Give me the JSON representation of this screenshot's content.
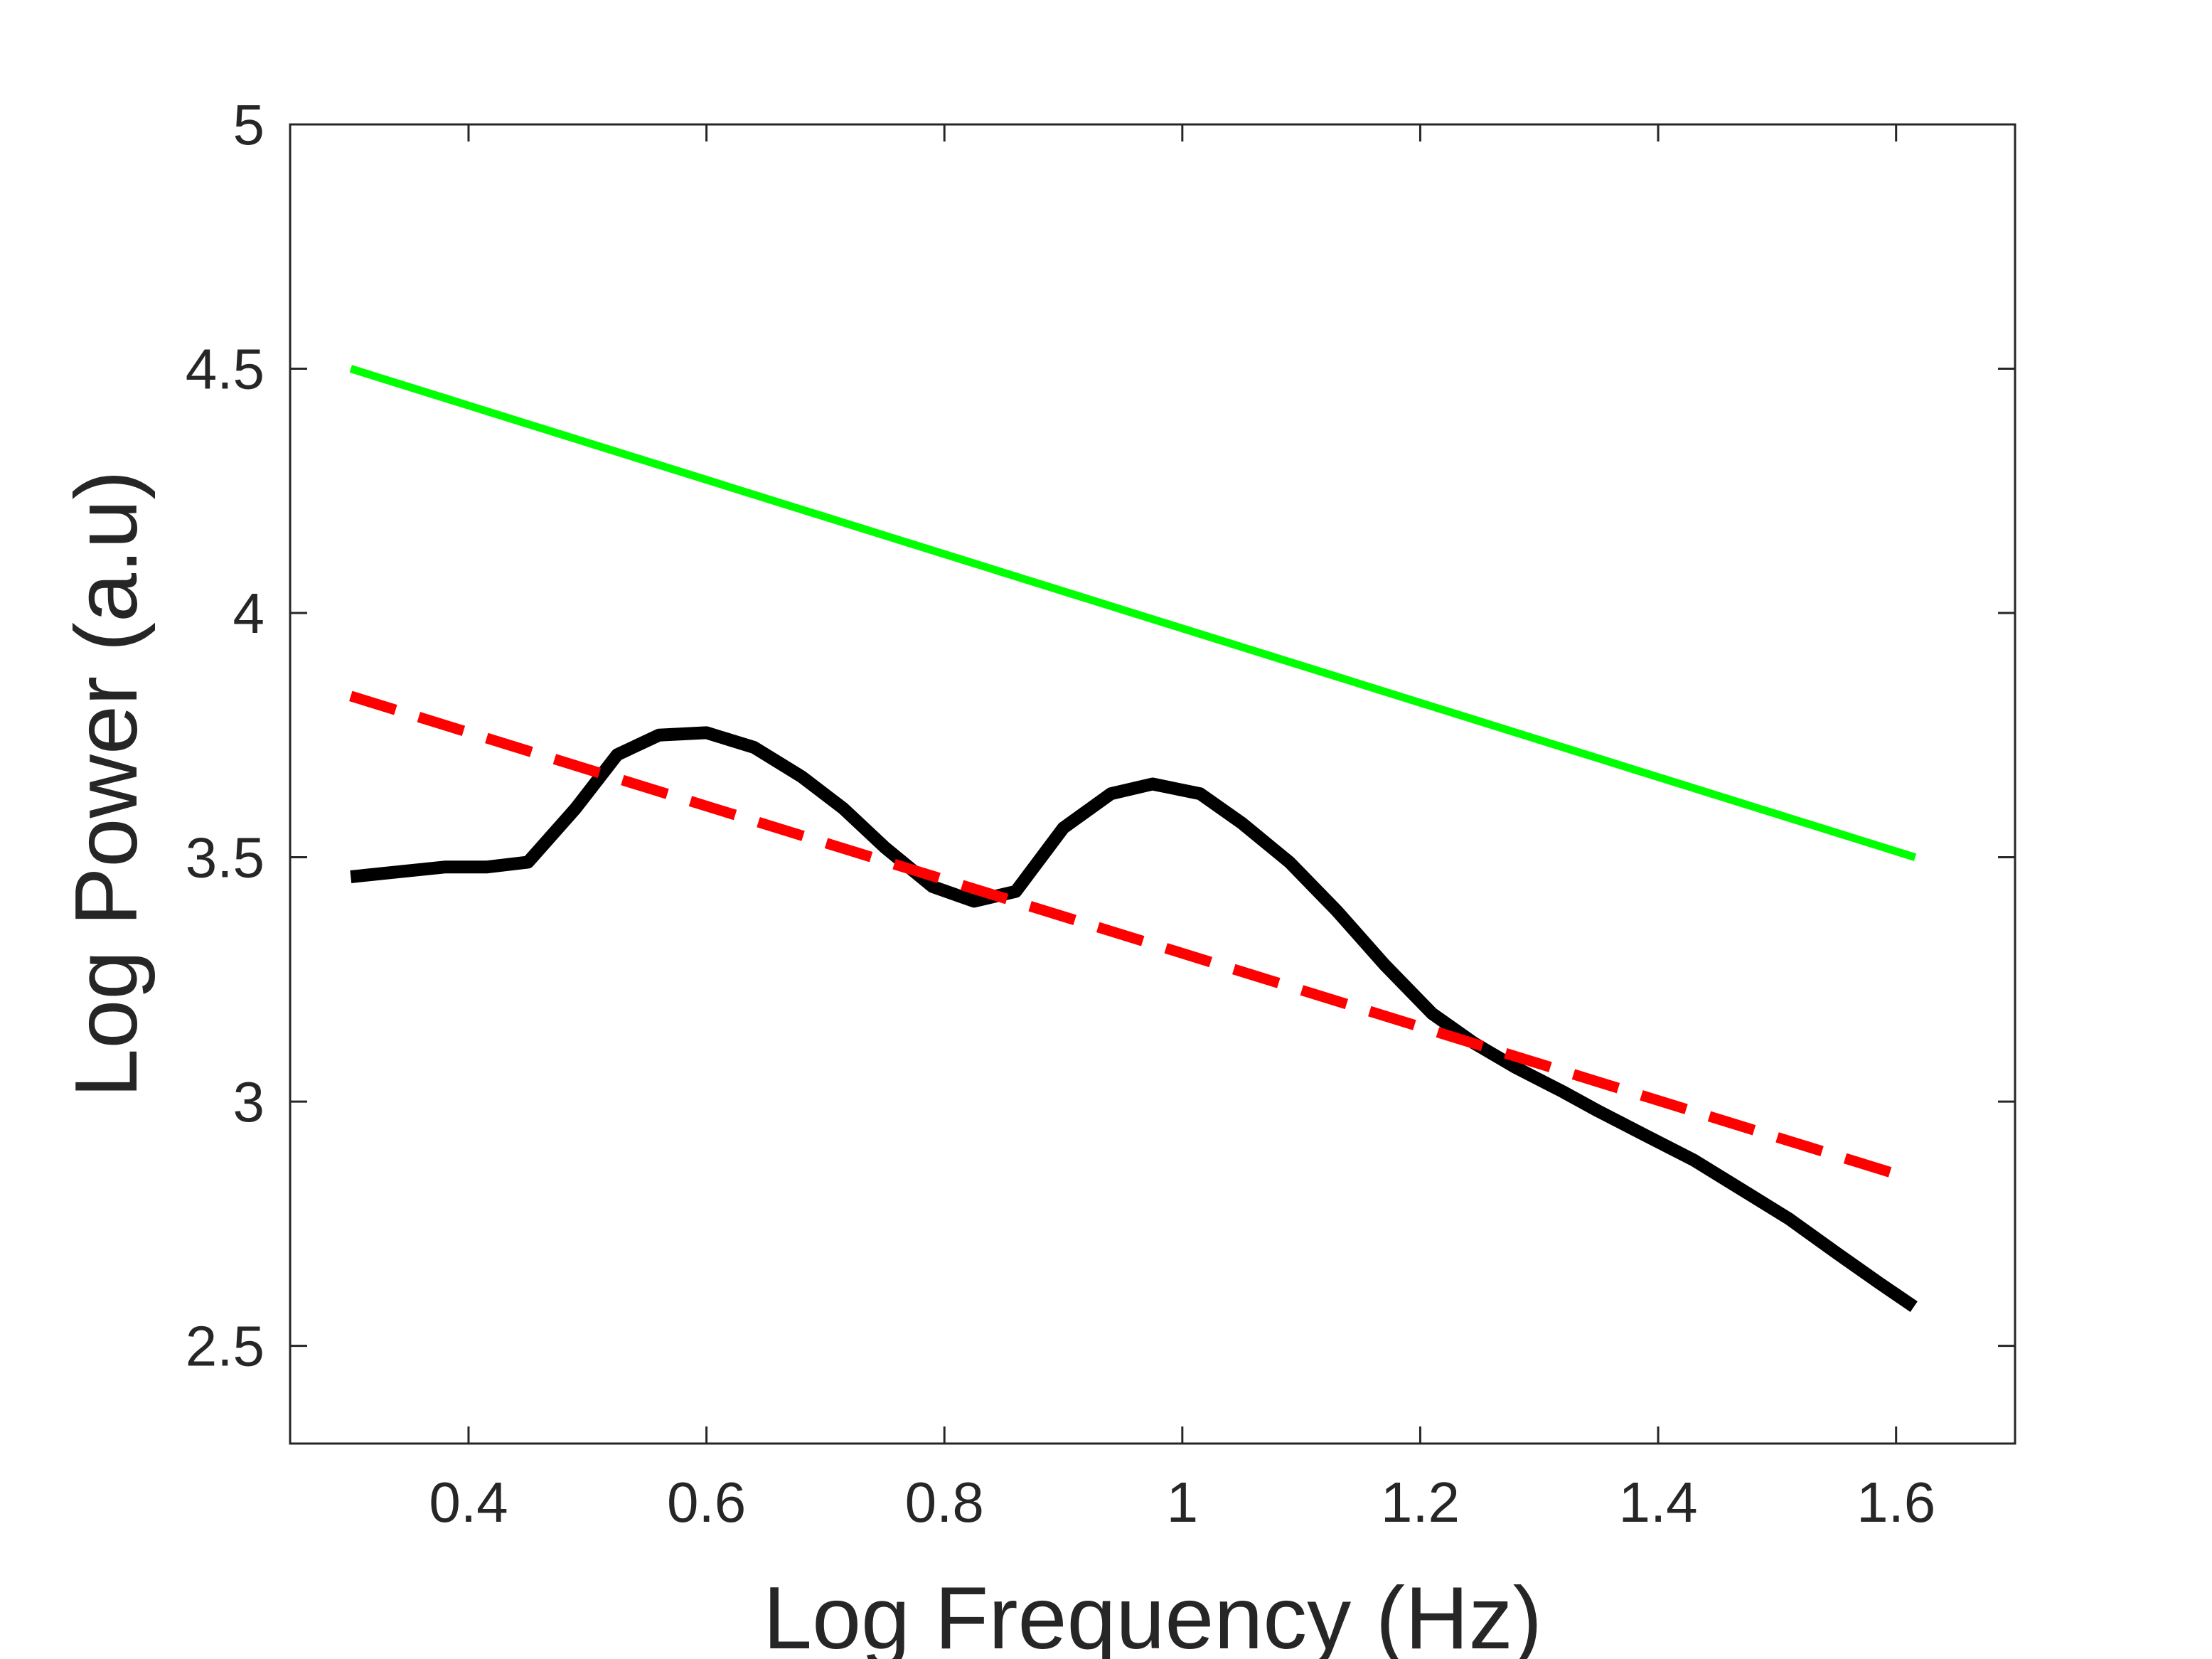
{
  "chart_data": {
    "type": "line",
    "title": "",
    "xlabel": "Log Frequency (Hz)",
    "ylabel": "Log Power (a.u)",
    "xlim": [
      0.25,
      1.7
    ],
    "ylim": [
      2.3,
      5
    ],
    "xticks": [
      0.4,
      0.6,
      0.8,
      1,
      1.2,
      1.4,
      1.6
    ],
    "xtick_labels": [
      "0.4",
      "0.6",
      "0.8",
      "1",
      "1.2",
      "1.4",
      "1.6"
    ],
    "yticks": [
      2.5,
      3,
      3.5,
      4,
      4.5,
      5
    ],
    "ytick_labels": [
      "2.5",
      "3",
      "3.5",
      "4",
      "4.5",
      "5"
    ],
    "grid": false,
    "legend": "none",
    "series": [
      {
        "color": "#000000",
        "style": "solid",
        "x": [
          0.301,
          0.34,
          0.38,
          0.415,
          0.45,
          0.49,
          0.525,
          0.56,
          0.6,
          0.64,
          0.68,
          0.715,
          0.75,
          0.79,
          0.825,
          0.86,
          0.9,
          0.94,
          0.975,
          1.015,
          1.05,
          1.09,
          1.13,
          1.17,
          1.21,
          1.245,
          1.28,
          1.32,
          1.35,
          1.39,
          1.43,
          1.47,
          1.51,
          1.55,
          1.585,
          1.615
        ],
        "y": [
          3.46,
          3.47,
          3.48,
          3.48,
          3.49,
          3.6,
          3.71,
          3.75,
          3.755,
          3.725,
          3.665,
          3.6,
          3.52,
          3.44,
          3.41,
          3.43,
          3.56,
          3.63,
          3.65,
          3.63,
          3.57,
          3.49,
          3.39,
          3.28,
          3.18,
          3.12,
          3.07,
          3.02,
          2.98,
          2.93,
          2.88,
          2.82,
          2.76,
          2.69,
          2.63,
          2.58
        ]
      },
      {
        "color": "#ff0000",
        "style": "dashed",
        "x": [
          0.301,
          1.602
        ],
        "y": [
          3.83,
          2.85
        ]
      },
      {
        "color": "#00ff00",
        "style": "solid",
        "x": [
          0.301,
          1.616
        ],
        "y": [
          4.5,
          3.5
        ]
      }
    ]
  }
}
